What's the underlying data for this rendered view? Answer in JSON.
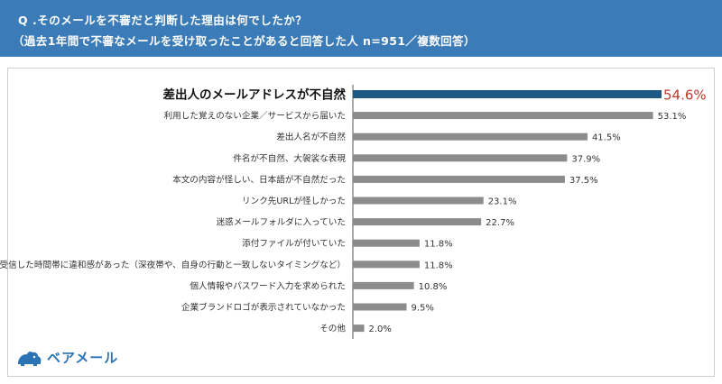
{
  "header": {
    "question": "Q .そのメールを不審だと判断した理由は何でしたか？",
    "subtitle": "（過去1年間で不審なメールを受け取ったことがあると回答した人  n=951／複数回答）"
  },
  "brand": {
    "name": "ベアメール",
    "logo_icon": "bear-icon"
  },
  "colors": {
    "header_bg": "#3a7bb8",
    "bar_default": "#8c8c8c",
    "bar_highlight": "#1f5a85",
    "highlight_value": "#c0392b"
  },
  "chart_data": {
    "type": "bar",
    "orientation": "horizontal",
    "unit": "%",
    "xlim": [
      0,
      60
    ],
    "categories": [
      "差出人のメールアドレスが不自然",
      "利用した覚えのない企業／サービスから届いた",
      "差出人名が不自然",
      "件名が不自然、大袈裟な表現",
      "本文の内容が怪しい、日本語が不自然だった",
      "リンク先URLが怪しかった",
      "迷惑メールフォルダに入っていた",
      "添付ファイルが付いていた",
      "受信した時間帯に違和感があった（深夜帯や、自身の行動と一致しないタイミングなど）",
      "個人情報やパスワード入力を求められた",
      "企業ブランドロゴが表示されていなかった",
      "その他"
    ],
    "values": [
      54.6,
      53.1,
      41.5,
      37.9,
      37.5,
      23.1,
      22.7,
      11.8,
      11.8,
      10.8,
      9.5,
      2.0
    ],
    "labels": [
      "54.6%",
      "53.1%",
      "41.5%",
      "37.9%",
      "37.5%",
      "23.1%",
      "22.7%",
      "11.8%",
      "11.8%",
      "10.8%",
      "9.5%",
      "2.0%"
    ],
    "highlight_index": 0
  }
}
